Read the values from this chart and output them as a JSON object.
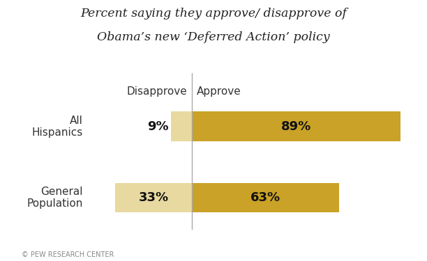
{
  "title_line1": "Percent saying they approve/ disapprove of",
  "title_line2": "Obama’s new ‘Deferred Action’ policy",
  "categories": [
    "All\nHispanics",
    "General\nPopulation"
  ],
  "disapprove": [
    9,
    33
  ],
  "approve": [
    89,
    63
  ],
  "disapprove_color": "#e8d9a0",
  "approve_color": "#c9a227",
  "disapprove_label": "Disapprove",
  "approve_label": "Approve",
  "footer": "© PEW RESEARCH CENTER",
  "background_color": "#ffffff",
  "bar_height": 0.42,
  "title_fontsize": 12.5,
  "bar_label_fontsize": 13,
  "header_fontsize": 11,
  "category_fontsize": 11
}
